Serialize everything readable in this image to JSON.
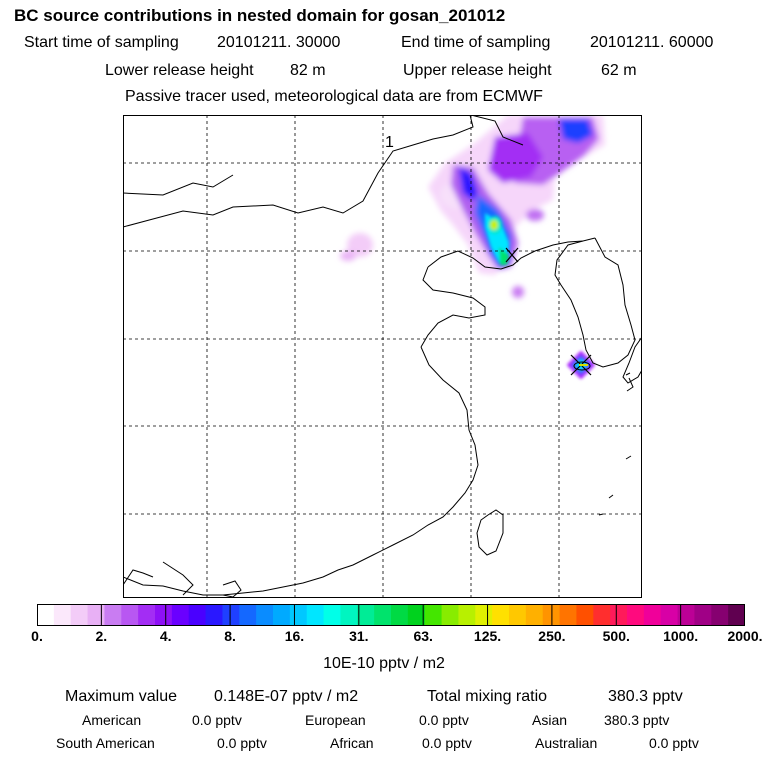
{
  "header": {
    "title": "BC  source contributions in nested domain for gosan_201012",
    "start_label": "Start time of sampling",
    "start_value": "20101211. 30000",
    "end_label": "End time of sampling",
    "end_value": "20101211. 60000",
    "lower_label": "Lower release height",
    "lower_value": "82 m",
    "upper_label": "Upper release height",
    "upper_value": "62 m",
    "tracer_note": "Passive tracer used, meteorological data are from ECMWF"
  },
  "map": {
    "release_marker": "1",
    "colors": {
      "land_outline": "#000000",
      "grid": "#000000",
      "plume_low": "#f3ccf8",
      "plume_mid": "#a000ff",
      "plume_high": "#00e8c8",
      "plume_peak": "#c8f000"
    }
  },
  "colorbar": {
    "colors": [
      "#ffffff",
      "#fbe8fb",
      "#f3ccf8",
      "#e8b0f5",
      "#c97cf2",
      "#b857f2",
      "#a32df4",
      "#8e10f6",
      "#6a00ff",
      "#4a00ff",
      "#2a18ff",
      "#1f40ff",
      "#1468ff",
      "#0a8cff",
      "#00aaff",
      "#00c8ff",
      "#00e6ff",
      "#00ffe8",
      "#00f5c0",
      "#00ec96",
      "#00e36c",
      "#00da44",
      "#00d21e",
      "#44e600",
      "#88ec00",
      "#b8f000",
      "#e0f000",
      "#ffe000",
      "#ffc800",
      "#ffb000",
      "#ff9400",
      "#ff7400",
      "#ff5000",
      "#ff2e2e",
      "#ff1a5a",
      "#ff0a7e",
      "#f0009a",
      "#d800a6",
      "#bc0096",
      "#a00086",
      "#860070",
      "#600050"
    ],
    "tick_labels": [
      "0.",
      "2.",
      "4.",
      "8.",
      "16.",
      "31.",
      "63.",
      "125.",
      "250.",
      "500.",
      "1000.",
      "2000."
    ],
    "units": "10E-10 pptv / m2"
  },
  "stats": {
    "max_label": "Maximum value",
    "max_value": "0.148E-07 pptv / m2",
    "total_label": "Total mixing ratio",
    "total_value": "380.3 pptv",
    "regions": [
      {
        "name": "American",
        "value": "0.0 pptv"
      },
      {
        "name": "European",
        "value": "0.0 pptv"
      },
      {
        "name": "Asian",
        "value": "380.3 pptv"
      },
      {
        "name": "South American",
        "value": "0.0 pptv"
      },
      {
        "name": "African",
        "value": "0.0 pptv"
      },
      {
        "name": "Australian",
        "value": "0.0 pptv"
      }
    ]
  }
}
